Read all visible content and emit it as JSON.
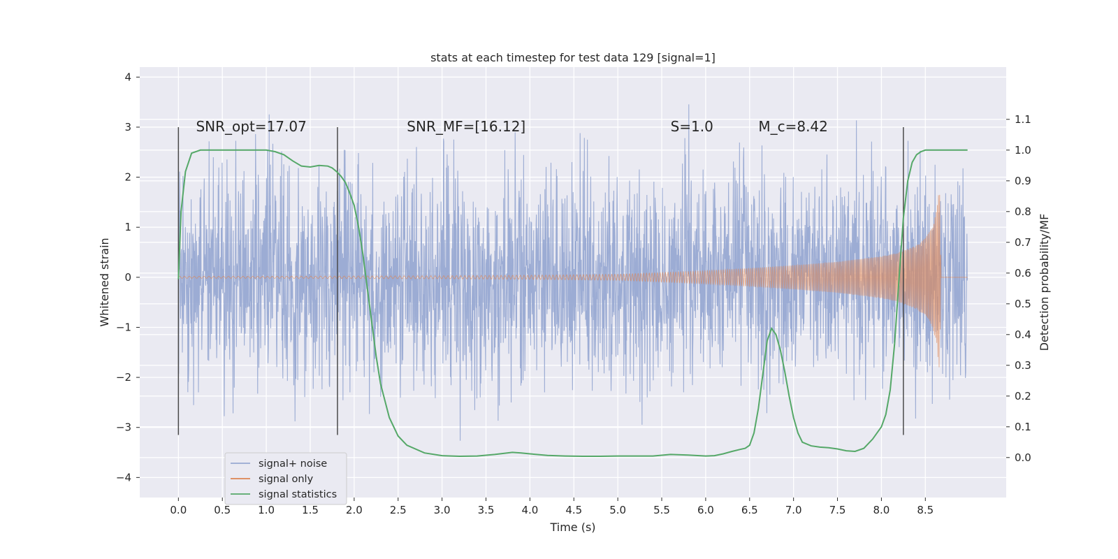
{
  "chart_data": {
    "type": "line",
    "title": "stats at each timestep for test data 129 [signal=1]",
    "xlabel": "Time (s)",
    "ylabel": "Whitened strain",
    "y2label": "Detection probability/MF",
    "xlim": [
      -0.44,
      9.42
    ],
    "ylim": [
      -4.4,
      4.2
    ],
    "y2lim": [
      -0.13,
      1.27
    ],
    "x_ticks": [
      "0.0",
      "0.5",
      "1.0",
      "1.5",
      "2.0",
      "2.5",
      "3.0",
      "3.5",
      "4.0",
      "4.5",
      "5.0",
      "5.5",
      "6.0",
      "6.5",
      "7.0",
      "7.5",
      "8.0",
      "8.5"
    ],
    "y_ticks": [
      "4",
      "3",
      "2",
      "1",
      "0",
      "−1",
      "−2",
      "−3",
      "−4"
    ],
    "y2_ticks": [
      "1.1",
      "1.0",
      "0.9",
      "0.8",
      "0.7",
      "0.6",
      "0.5",
      "0.4",
      "0.3",
      "0.2",
      "0.1",
      "0.0"
    ],
    "grid": true,
    "legend_position": "lower-left",
    "colors": {
      "background": "#eaeaf2",
      "noise": "#98a9d2",
      "signal": "#dd8452",
      "statistics": "#55a868",
      "vlines": "#4a4a4a"
    },
    "annotations": [
      {
        "text": "SNR_opt=17.07",
        "x": 0.2,
        "y": 3.0
      },
      {
        "text": "SNR_MF=[16.12]",
        "x": 2.6,
        "y": 3.0
      },
      {
        "text": "S=1.0",
        "x": 5.6,
        "y": 3.0
      },
      {
        "text": "M_c=8.42",
        "x": 6.6,
        "y": 3.0
      }
    ],
    "vertical_lines_x": [
      0.0,
      1.81,
      8.25
    ],
    "vertical_lines_yrange": [
      -3.15,
      3.0
    ],
    "series": [
      {
        "name": "signal+ noise",
        "axis": "left",
        "description_samples": "noisy whitened strain, roughly gaussian, typical amplitude about ±1.5, peaks near ±3.8",
        "x_range": [
          0.0,
          8.98
        ]
      },
      {
        "name": "signal only",
        "axis": "left",
        "x_range": [
          0.0,
          8.98
        ],
        "envelope": {
          "x": [
            0.0,
            1.0,
            2.0,
            3.0,
            4.0,
            5.0,
            6.0,
            6.5,
            7.0,
            7.5,
            8.0,
            8.2,
            8.4,
            8.5,
            8.58,
            8.63,
            8.66,
            8.68
          ],
          "amp": [
            0.02,
            0.02,
            0.025,
            0.03,
            0.04,
            0.06,
            0.13,
            0.18,
            0.24,
            0.31,
            0.42,
            0.5,
            0.64,
            0.78,
            1.0,
            1.35,
            1.9,
            0.0
          ]
        }
      },
      {
        "name": "signal statistics",
        "axis": "right",
        "x": [
          0.0,
          0.03,
          0.08,
          0.15,
          0.25,
          0.4,
          0.6,
          0.8,
          1.0,
          1.1,
          1.2,
          1.3,
          1.4,
          1.5,
          1.6,
          1.7,
          1.75,
          1.8,
          1.85,
          1.9,
          1.95,
          2.0,
          2.05,
          2.1,
          2.15,
          2.2,
          2.25,
          2.3,
          2.4,
          2.5,
          2.6,
          2.8,
          3.0,
          3.2,
          3.4,
          3.6,
          3.8,
          3.9,
          4.0,
          4.2,
          4.4,
          4.6,
          4.8,
          5.0,
          5.2,
          5.4,
          5.6,
          5.8,
          6.0,
          6.1,
          6.2,
          6.3,
          6.4,
          6.45,
          6.5,
          6.55,
          6.6,
          6.65,
          6.7,
          6.75,
          6.8,
          6.85,
          6.9,
          6.95,
          7.0,
          7.05,
          7.1,
          7.2,
          7.3,
          7.4,
          7.5,
          7.6,
          7.7,
          7.8,
          7.9,
          8.0,
          8.05,
          8.1,
          8.15,
          8.2,
          8.25,
          8.3,
          8.35,
          8.4,
          8.45,
          8.5,
          8.6,
          8.7,
          8.8,
          8.9,
          8.98
        ],
        "values": [
          0.58,
          0.8,
          0.93,
          0.99,
          1.0,
          1.0,
          1.0,
          1.0,
          1.0,
          0.995,
          0.985,
          0.965,
          0.948,
          0.945,
          0.95,
          0.948,
          0.942,
          0.93,
          0.915,
          0.895,
          0.86,
          0.82,
          0.75,
          0.66,
          0.55,
          0.44,
          0.33,
          0.24,
          0.13,
          0.07,
          0.04,
          0.015,
          0.006,
          0.004,
          0.005,
          0.01,
          0.017,
          0.015,
          0.012,
          0.007,
          0.005,
          0.004,
          0.004,
          0.005,
          0.005,
          0.005,
          0.01,
          0.008,
          0.005,
          0.006,
          0.012,
          0.02,
          0.027,
          0.03,
          0.04,
          0.08,
          0.16,
          0.27,
          0.38,
          0.42,
          0.4,
          0.35,
          0.28,
          0.2,
          0.13,
          0.08,
          0.05,
          0.038,
          0.034,
          0.032,
          0.028,
          0.022,
          0.02,
          0.03,
          0.06,
          0.1,
          0.14,
          0.22,
          0.37,
          0.58,
          0.78,
          0.9,
          0.96,
          0.985,
          0.995,
          1.0,
          1.0,
          1.0,
          1.0,
          1.0,
          1.0
        ]
      }
    ]
  }
}
